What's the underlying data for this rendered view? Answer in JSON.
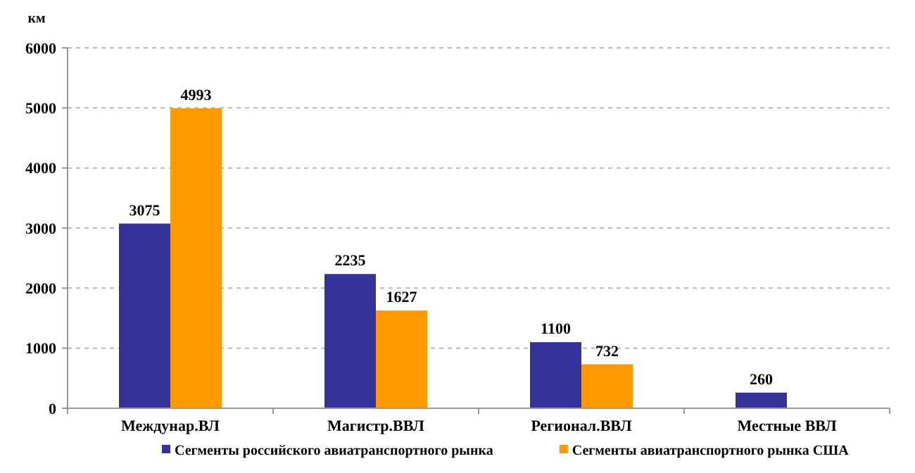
{
  "chart_data": {
    "type": "bar",
    "ylabel": "км",
    "categories": [
      "Междунар.ВЛ",
      "Магистр.ВВЛ",
      "Регионал.ВВЛ",
      "Местные ВВЛ"
    ],
    "series": [
      {
        "name": "Сегменты российского авиатранспортного рынка",
        "color": "#333399",
        "values": [
          3075,
          2235,
          1100,
          260
        ]
      },
      {
        "name": "Сегменты авиатранспортного рынка США",
        "color": "#ff9900",
        "values": [
          4993,
          1627,
          732,
          null
        ]
      }
    ],
    "ylim": [
      0,
      6000
    ],
    "yticks": [
      0,
      1000,
      2000,
      3000,
      4000,
      5000,
      6000
    ],
    "grid": "y",
    "legend": "bottom",
    "data_labels": true
  }
}
